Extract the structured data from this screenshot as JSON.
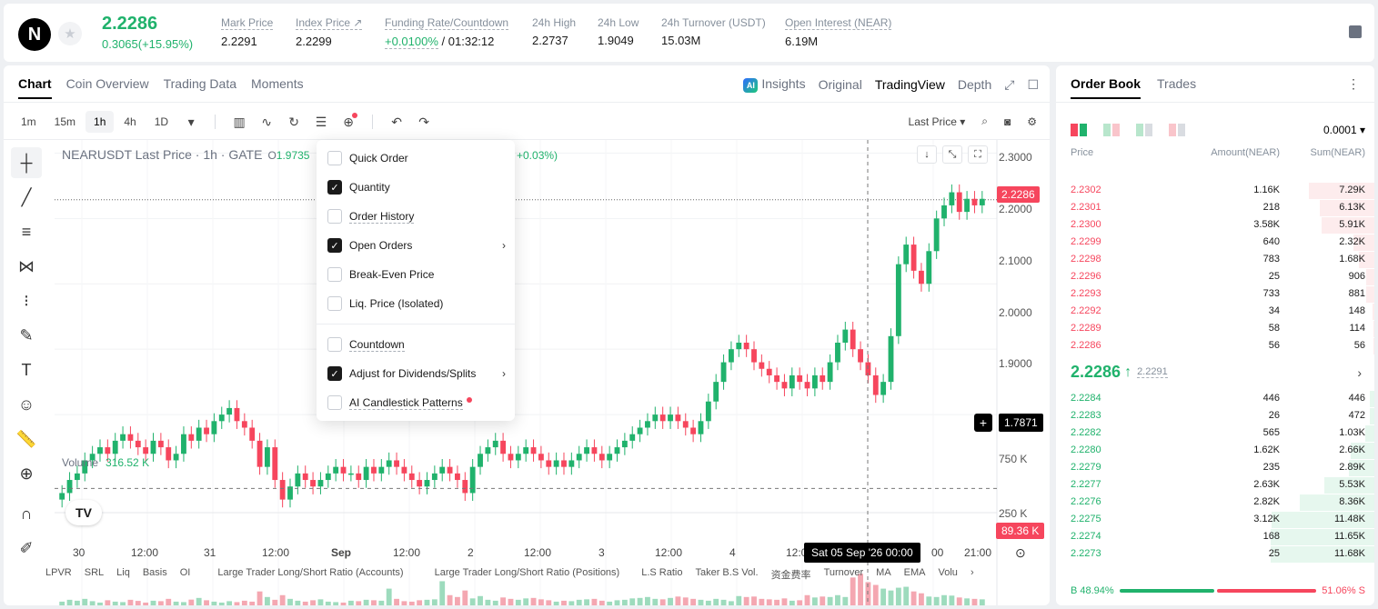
{
  "ticker": {
    "logo": "N",
    "last_price": "2.2286",
    "change": "0.3065(+15.95%)",
    "stats": [
      {
        "label": "Mark Price",
        "value": "2.2291"
      },
      {
        "label": "Index Price ↗",
        "value": "2.2299"
      },
      {
        "label": "Funding Rate/Countdown",
        "value_rate": "+0.0100%",
        "value_countdown": "/ 01:32:12"
      },
      {
        "label": "24h High",
        "value": "2.2737"
      },
      {
        "label": "24h Low",
        "value": "1.9049"
      },
      {
        "label": "24h Turnover (USDT)",
        "value": "15.03M"
      },
      {
        "label": "Open Interest (NEAR)",
        "value": "6.19M"
      }
    ]
  },
  "chart_tabs": [
    "Chart",
    "Coin Overview",
    "Trading Data",
    "Moments"
  ],
  "view_tabs": {
    "insights": "Insights",
    "ai_badge": "AI",
    "original": "Original",
    "tradingview": "TradingView",
    "depth": "Depth"
  },
  "intervals": [
    "1m",
    "15m",
    "1h",
    "4h",
    "1D"
  ],
  "last_price_selector": "Last Price",
  "legend": {
    "title": "NEARUSDT Last Price · 1h · GATE",
    "open_prefix": "O",
    "open_value": "1.9735",
    "pct": "+0.03%)"
  },
  "price_axis": [
    "2.3000",
    "2.2000",
    "2.1000",
    "2.0000",
    "1.9000",
    "1.7871"
  ],
  "price_tag": "2.2286",
  "cursor_price": "1.7871",
  "volume": {
    "label": "Volume",
    "value": "316.52 K",
    "axis": [
      "750 K",
      "250 K"
    ],
    "tag": "89.36 K"
  },
  "time_axis": [
    "30",
    "12:00",
    "31",
    "12:00",
    "Sep",
    "12:00",
    "2",
    "12:00",
    "3",
    "12:00",
    "4",
    "12:0",
    "00",
    "21:00"
  ],
  "time_cursor": "Sat 05 Sep '26   00:00",
  "tv_logo": "TV",
  "indicators": [
    "LPVR",
    "SRL",
    "Liq",
    "Basis",
    "OI",
    "Large Trader Long/Short Ratio (Accounts)",
    "Large Trader Long/Short Ratio (Positions)",
    "L.S Ratio",
    "Taker B.S Vol.",
    "资金费率",
    "Turnover",
    "MA",
    "EMA",
    "Volu"
  ],
  "menu": {
    "items": [
      {
        "label": "Quick Order",
        "checked": false,
        "arrow": false
      },
      {
        "label": "Quantity",
        "checked": true,
        "arrow": false
      },
      {
        "label": "Order History",
        "checked": false,
        "arrow": false
      },
      {
        "label": "Open Orders",
        "checked": true,
        "arrow": true
      },
      {
        "label": "Break-Even Price",
        "checked": false,
        "arrow": false
      },
      {
        "label": "Liq. Price (Isolated)",
        "checked": false,
        "arrow": false
      },
      {
        "label": "Countdown",
        "checked": false,
        "arrow": false
      },
      {
        "label": "Adjust for Dividends/Splits",
        "checked": true,
        "arrow": true
      },
      {
        "label": "AI Candlestick Patterns",
        "checked": false,
        "arrow": false
      }
    ]
  },
  "book": {
    "tabs": [
      "Order Book",
      "Trades"
    ],
    "tick": "0.0001",
    "headers": {
      "price": "Price",
      "amount": "Amount(NEAR)",
      "sum": "Sum(NEAR)"
    },
    "asks": [
      {
        "price": "2.2302",
        "amount": "1.16K",
        "sum": "7.29K",
        "depth": 0.63
      },
      {
        "price": "2.2301",
        "amount": "218",
        "sum": "6.13K",
        "depth": 0.53
      },
      {
        "price": "2.2300",
        "amount": "3.58K",
        "sum": "5.91K",
        "depth": 0.51
      },
      {
        "price": "2.2299",
        "amount": "640",
        "sum": "2.32K",
        "depth": 0.2
      },
      {
        "price": "2.2298",
        "amount": "783",
        "sum": "1.68K",
        "depth": 0.15
      },
      {
        "price": "2.2296",
        "amount": "25",
        "sum": "906",
        "depth": 0.08
      },
      {
        "price": "2.2293",
        "amount": "733",
        "sum": "881",
        "depth": 0.08
      },
      {
        "price": "2.2292",
        "amount": "34",
        "sum": "148",
        "depth": 0.02
      },
      {
        "price": "2.2289",
        "amount": "58",
        "sum": "114",
        "depth": 0.01
      },
      {
        "price": "2.2286",
        "amount": "56",
        "sum": "56",
        "depth": 0.005
      }
    ],
    "mid_price": "2.2286",
    "mid_mark": "2.2291",
    "bids": [
      {
        "price": "2.2284",
        "amount": "446",
        "sum": "446",
        "depth": 0.04
      },
      {
        "price": "2.2283",
        "amount": "26",
        "sum": "472",
        "depth": 0.04
      },
      {
        "price": "2.2282",
        "amount": "565",
        "sum": "1.03K",
        "depth": 0.09
      },
      {
        "price": "2.2280",
        "amount": "1.62K",
        "sum": "2.66K",
        "depth": 0.23
      },
      {
        "price": "2.2279",
        "amount": "235",
        "sum": "2.89K",
        "depth": 0.25
      },
      {
        "price": "2.2277",
        "amount": "2.63K",
        "sum": "5.53K",
        "depth": 0.48
      },
      {
        "price": "2.2276",
        "amount": "2.82K",
        "sum": "8.36K",
        "depth": 0.72
      },
      {
        "price": "2.2275",
        "amount": "3.12K",
        "sum": "11.48K",
        "depth": 0.99
      },
      {
        "price": "2.2274",
        "amount": "168",
        "sum": "11.65K",
        "depth": 1.0
      },
      {
        "price": "2.2273",
        "amount": "25",
        "sum": "11.68K",
        "depth": 1.0
      }
    ],
    "buy_ratio": "B 48.94%",
    "sell_ratio": "51.06% S",
    "buy_fraction": 0.4894
  },
  "colors": {
    "up": "#20b26c",
    "down": "#f6465d"
  },
  "chart_data": {
    "type": "candlestick",
    "title": "NEARUSDT Last Price · 1h · GATE",
    "ylim": [
      1.75,
      2.32
    ],
    "y_ticks": [
      2.3,
      2.2,
      2.1,
      2.0,
      1.9
    ],
    "x_ticks": [
      "30",
      "12:00",
      "31",
      "12:00",
      "Sep",
      "12:00",
      "2",
      "12:00",
      "3",
      "12:00",
      "4",
      "12:00",
      "00:00",
      "21:00"
    ],
    "last_price": 2.2286,
    "closes": [
      1.78,
      1.8,
      1.81,
      1.83,
      1.84,
      1.85,
      1.84,
      1.86,
      1.87,
      1.86,
      1.85,
      1.84,
      1.86,
      1.85,
      1.83,
      1.84,
      1.87,
      1.86,
      1.88,
      1.87,
      1.89,
      1.9,
      1.91,
      1.89,
      1.88,
      1.86,
      1.82,
      1.85,
      1.8,
      1.77,
      1.79,
      1.81,
      1.8,
      1.79,
      1.8,
      1.81,
      1.82,
      1.81,
      1.81,
      1.8,
      1.82,
      1.81,
      1.82,
      1.83,
      1.82,
      1.81,
      1.8,
      1.79,
      1.8,
      1.81,
      1.82,
      1.81,
      1.8,
      1.78,
      1.82,
      1.84,
      1.85,
      1.86,
      1.84,
      1.83,
      1.84,
      1.85,
      1.84,
      1.83,
      1.82,
      1.83,
      1.82,
      1.83,
      1.84,
      1.85,
      1.84,
      1.83,
      1.84,
      1.85,
      1.86,
      1.87,
      1.88,
      1.89,
      1.9,
      1.89,
      1.9,
      1.89,
      1.88,
      1.87,
      1.89,
      1.92,
      1.95,
      1.98,
      2.0,
      2.01,
      2.0,
      1.98,
      1.97,
      1.96,
      1.95,
      1.94,
      1.96,
      1.95,
      1.94,
      1.96,
      1.95,
      1.98,
      2.01,
      2.03,
      2.0,
      1.98,
      1.96,
      1.93,
      1.95,
      2.02,
      2.13,
      2.16,
      2.12,
      2.1,
      2.15,
      2.2,
      2.22,
      2.24,
      2.21,
      2.23,
      2.22,
      2.23
    ],
    "volume_ylim": [
      0,
      900
    ],
    "volumes": [
      40,
      60,
      50,
      70,
      45,
      30,
      55,
      40,
      35,
      60,
      48,
      30,
      50,
      45,
      70,
      40,
      35,
      62,
      80,
      55,
      40,
      30,
      45,
      35,
      50,
      40,
      150,
      90,
      60,
      110,
      70,
      50,
      40,
      55,
      65,
      40,
      35,
      30,
      50,
      45,
      60,
      55,
      50,
      180,
      70,
      45,
      40,
      55,
      60,
      65,
      260,
      110,
      90,
      160,
      75,
      100,
      60,
      50,
      85,
      70,
      60,
      75,
      80,
      65,
      55,
      40,
      50,
      45,
      60,
      65,
      70,
      50,
      40,
      55,
      60,
      75,
      80,
      90,
      70,
      65,
      80,
      95,
      85,
      70,
      60,
      50,
      70,
      60,
      45,
      100,
      90,
      95,
      70,
      65,
      60,
      75,
      50,
      55,
      110,
      85,
      95,
      90,
      110,
      90,
      300,
      340,
      250,
      220,
      180,
      160,
      190,
      200,
      150,
      130,
      95,
      90,
      110,
      105,
      85,
      75,
      70,
      65
    ]
  }
}
